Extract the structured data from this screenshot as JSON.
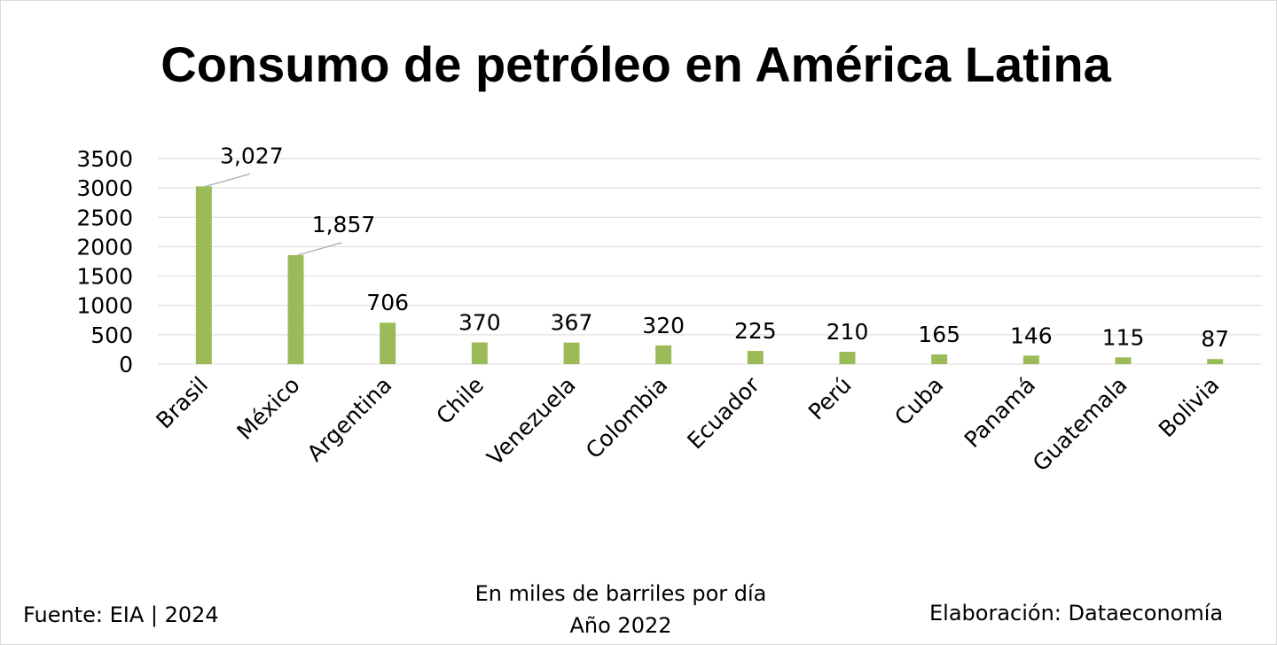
{
  "chart_data": {
    "type": "bar",
    "title": "Consumo de petróleo en América Latina",
    "categories": [
      "Brasil",
      "México",
      "Argentina",
      "Chile",
      "Venezuela",
      "Colombia",
      "Ecuador",
      "Perú",
      "Cuba",
      "Panamá",
      "Guatemala",
      "Bolivia"
    ],
    "values": [
      3027,
      1857,
      706,
      370,
      367,
      320,
      225,
      210,
      165,
      146,
      115,
      87
    ],
    "data_labels": [
      "3,027",
      "1,857",
      "706",
      "370",
      "367",
      "320",
      "225",
      "210",
      "165",
      "146",
      "115",
      "87"
    ],
    "y_ticks": [
      0,
      500,
      1000,
      1500,
      2000,
      2500,
      3000,
      3500
    ],
    "ylim": [
      0,
      3500
    ],
    "grid": true,
    "legend": "none",
    "bar_color": "#9bbb59",
    "grid_color": "#d9d9d9"
  },
  "subtitle": {
    "line1": "En miles de barriles por día",
    "line2": "Año 2022"
  },
  "source": "Fuente: EIA | 2024",
  "credit": "Elaboración: Dataeconomía"
}
